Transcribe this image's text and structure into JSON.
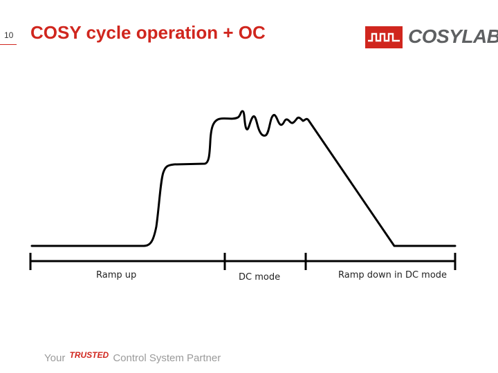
{
  "slide": {
    "page_number": "10",
    "title": "COSY cycle operation + OC"
  },
  "logo": {
    "text": "COSYLAB",
    "icon": "square-wave-icon",
    "icon_color": "#d0261e",
    "text_color": "#5e6062"
  },
  "diagram": {
    "phases": [
      "Ramp up",
      "DC mode",
      "Ramp down in DC mode"
    ],
    "line_color": "#000000"
  },
  "footer": {
    "tagline_prefix": "Your",
    "tagline_highlight": "TRUSTED",
    "tagline_suffix": "Control System Partner"
  },
  "colors": {
    "accent": "#d0261e",
    "tagline": "#9a9a9a"
  }
}
